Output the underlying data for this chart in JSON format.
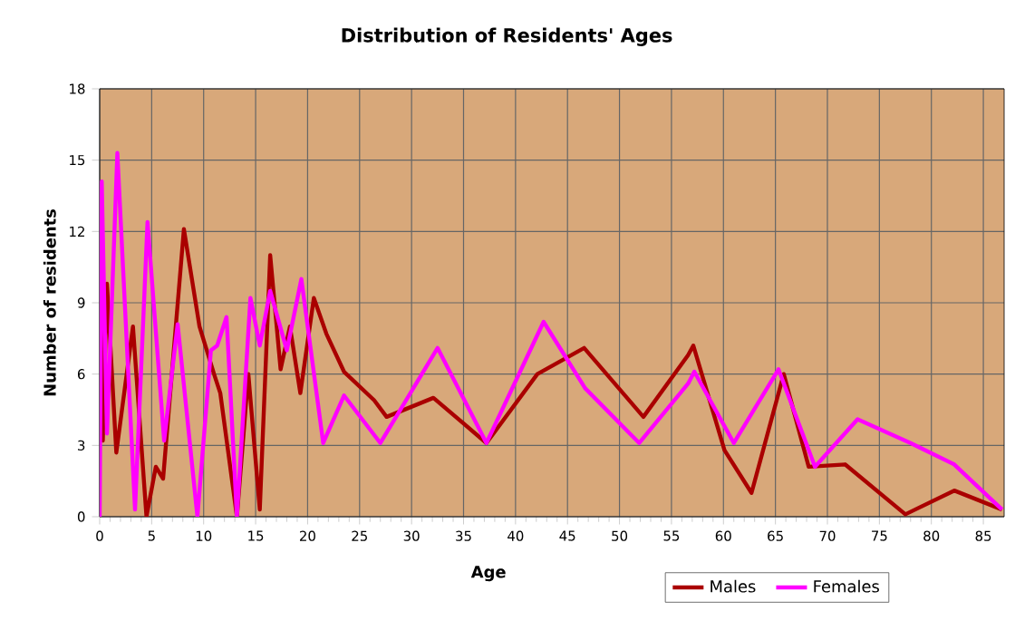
{
  "chart_data": {
    "type": "line",
    "title": "Distribution of Residents' Ages",
    "xlabel": "Age",
    "ylabel": "Number of residents",
    "xlim": [
      0,
      87
    ],
    "ylim": [
      0,
      18
    ],
    "xticks": [
      0,
      5,
      10,
      15,
      20,
      25,
      30,
      35,
      40,
      45,
      50,
      55,
      60,
      65,
      70,
      75,
      80,
      85
    ],
    "yticks": [
      0,
      3,
      6,
      9,
      12,
      15,
      18
    ],
    "grid": true,
    "legend": "bottom right",
    "marker": "none",
    "line_style": "solid",
    "series": [
      {
        "name": "Males",
        "color": "#aa0000",
        "x": [
          0,
          0.3,
          0.7,
          1.6,
          3.2,
          4.5,
          5.4,
          6.1,
          8.1,
          9.6,
          11,
          11.6,
          13.2,
          14.3,
          15.4,
          16.4,
          17.4,
          18.3,
          19.3,
          20.6,
          21.8,
          23.5,
          26.4,
          27.6,
          32.1,
          37.2,
          42.1,
          46.6,
          52.3,
          56.6,
          57.1,
          60.1,
          62.7,
          65.8,
          68.2,
          71.7,
          77.5,
          82.2,
          86.8
        ],
        "values": [
          12,
          3.2,
          9.8,
          2.7,
          8,
          0,
          2.1,
          1.6,
          12.1,
          8,
          6,
          5.2,
          0,
          6,
          0.3,
          11,
          6.2,
          8,
          5.2,
          9.2,
          7.7,
          6.1,
          4.9,
          4.2,
          5,
          3.1,
          6,
          7.1,
          4.2,
          6.8,
          7.2,
          2.8,
          1,
          6,
          2.1,
          2.2,
          0.1,
          1.1,
          0.3
        ]
      },
      {
        "name": "Females",
        "color": "#ff00ff",
        "x": [
          0,
          0.2,
          0.7,
          1.7,
          3.4,
          4.6,
          6.2,
          7.5,
          9.4,
          10.7,
          11.3,
          12.2,
          13.2,
          14.5,
          15.4,
          16.4,
          18,
          19.4,
          21.5,
          23.5,
          27,
          32.5,
          37.2,
          42.7,
          46.7,
          51.9,
          56.6,
          57.2,
          61,
          65.3,
          68.8,
          72.9,
          78,
          82.2,
          86.8
        ],
        "values": [
          0,
          14.1,
          3.5,
          15.3,
          0.3,
          12.4,
          3.2,
          8.1,
          0,
          7,
          7.2,
          8.4,
          0,
          9.2,
          7.2,
          9.5,
          7,
          10,
          3.1,
          5.1,
          3.1,
          7.1,
          3.1,
          8.2,
          5.4,
          3.1,
          5.6,
          6.1,
          3.1,
          6.2,
          2.1,
          4.1,
          3.1,
          2.2,
          0.3
        ]
      }
    ]
  }
}
